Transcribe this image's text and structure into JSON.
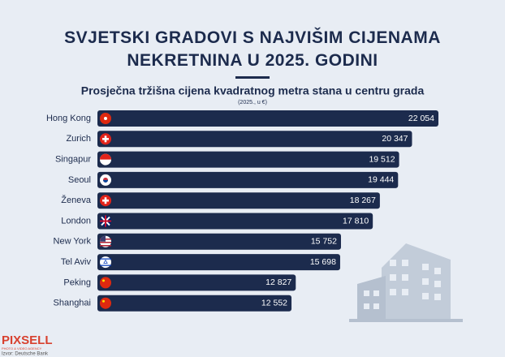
{
  "chart_data": {
    "type": "bar",
    "orientation": "horizontal",
    "title": "SVJETSKI GRADOVI S NAJVIŠIM CIJENAMA NEKRETNINA U 2025. GODINI",
    "subtitle": "Prosječna tržišna cijena kvadratnog metra stana u centru grada",
    "note": "(2025., u €)",
    "categories": [
      "Hong Kong",
      "Zurich",
      "Singapur",
      "Seoul",
      "Ženeva",
      "London",
      "New York",
      "Tel Aviv",
      "Peking",
      "Shanghai"
    ],
    "values": [
      22054,
      20347,
      19512,
      19444,
      18267,
      17810,
      15752,
      15698,
      12827,
      12552
    ],
    "value_labels": [
      "22 054",
      "20 347",
      "19 512",
      "19 444",
      "18 267",
      "17 810",
      "15 752",
      "15 698",
      "12 827",
      "12 552"
    ],
    "color": "#1c2b4d"
  },
  "footer": {
    "logo": "PIXSELL",
    "tagline": "PHOTO & VIDEO AGENCY",
    "source": "Izvor: Deutsche Bank"
  }
}
